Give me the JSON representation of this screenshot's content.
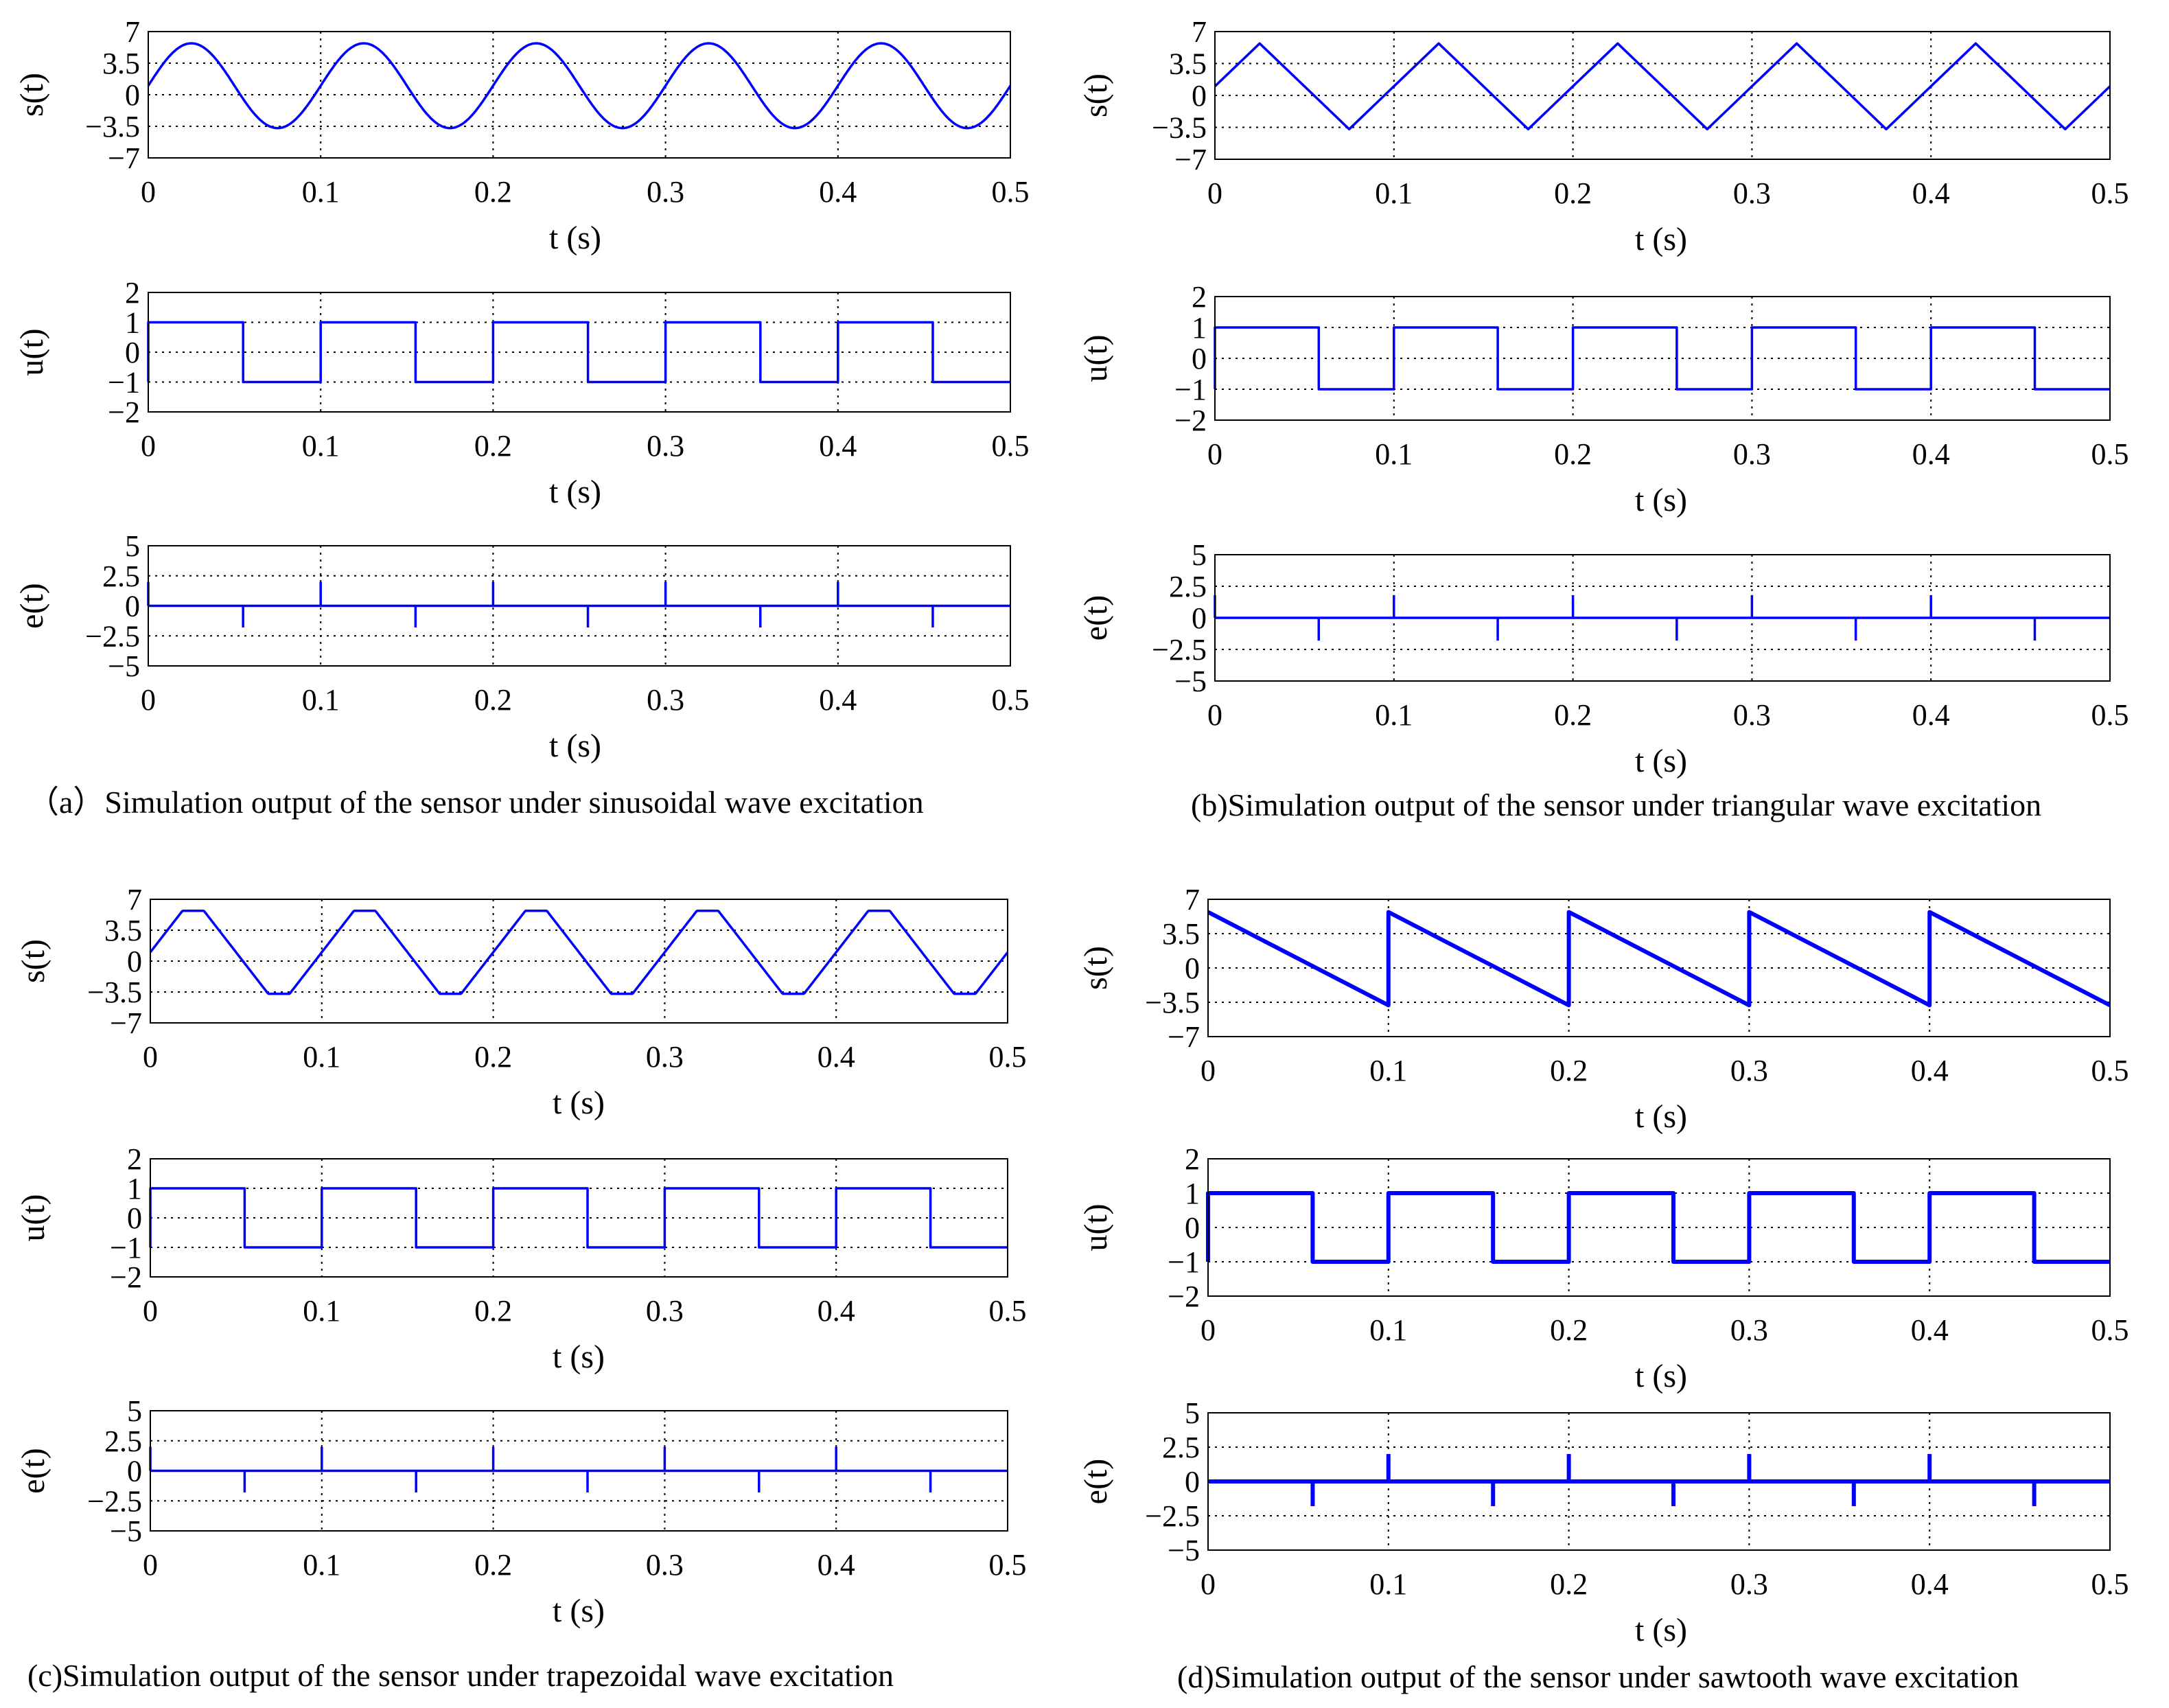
{
  "figure": {
    "captions": [
      "（a）Simulation output of the sensor under sinusoidal wave excitation",
      "(b)Simulation output of the sensor under triangular wave excitation",
      "(c)Simulation output of the sensor under trapezoidal wave excitation",
      "(d)Simulation output of the sensor under sawtooth wave excitation"
    ]
  },
  "colors": {
    "line": "#0000ff",
    "axis": "#000000",
    "background": "#ffffff"
  },
  "chart_data": [
    {
      "panel": "a",
      "type": "line",
      "excitation": "sinusoidal",
      "caption": "（a）Simulation output of the sensor under sinusoidal wave excitation",
      "subplots": [
        {
          "ylabel": "s(t)",
          "xlabel": "t (s)",
          "xlim": [
            0,
            0.5
          ],
          "ylim": [
            -7,
            7
          ],
          "xticks": [
            "0",
            "0.1",
            "0.2",
            "0.3",
            "0.4",
            "0.5"
          ],
          "yticks": [
            "7",
            "3.5",
            "0",
            "−3.5",
            "−7"
          ],
          "ytick_values": [
            7,
            3.5,
            0,
            -3.5,
            -7
          ],
          "grid": true,
          "series": [
            {
              "name": "s(t)",
              "shape": "sine",
              "period": 0.1,
              "offset": 1,
              "amplitude": 4.7
            }
          ]
        },
        {
          "ylabel": "u(t)",
          "xlabel": "t (s)",
          "xlim": [
            0,
            0.5
          ],
          "ylim": [
            -2,
            2
          ],
          "xticks": [
            "0",
            "0.1",
            "0.2",
            "0.3",
            "0.4",
            "0.5"
          ],
          "yticks": [
            "2",
            "1",
            "0",
            "−1",
            "−2"
          ],
          "ytick_values": [
            2,
            1,
            0,
            -1,
            -2
          ],
          "grid": true,
          "series": [
            {
              "name": "u(t)",
              "shape": "square",
              "period": 0.1,
              "high": 1,
              "low": -1,
              "high_until": 0.055
            }
          ]
        },
        {
          "ylabel": "e(t)",
          "xlabel": "t (s)",
          "xlim": [
            0,
            0.5
          ],
          "ylim": [
            -5,
            5
          ],
          "xticks": [
            "0",
            "0.1",
            "0.2",
            "0.3",
            "0.4",
            "0.5"
          ],
          "yticks": [
            "5",
            "2.5",
            "0",
            "−2.5",
            "−5"
          ],
          "ytick_values": [
            5,
            2.5,
            0,
            -2.5,
            -5
          ],
          "grid": true,
          "series": [
            {
              "name": "e(t)",
              "shape": "spikes",
              "spikes": [
                [
                  0,
                  2
                ],
                [
                  0.055,
                  -1.8
                ],
                [
                  0.1,
                  2
                ],
                [
                  0.155,
                  -1.8
                ],
                [
                  0.2,
                  2
                ],
                [
                  0.255,
                  -1.8
                ],
                [
                  0.3,
                  2
                ],
                [
                  0.355,
                  -1.8
                ],
                [
                  0.4,
                  2
                ],
                [
                  0.455,
                  -1.8
                ]
              ]
            }
          ]
        }
      ]
    },
    {
      "panel": "b",
      "type": "line",
      "excitation": "triangular",
      "caption": "(b)Simulation output of the sensor under triangular wave excitation",
      "subplots": [
        {
          "ylabel": "s(t)",
          "xlabel": "t (s)",
          "xlim": [
            0,
            0.5
          ],
          "ylim": [
            -7,
            7
          ],
          "xticks": [
            "0",
            "0.1",
            "0.2",
            "0.3",
            "0.4",
            "0.5"
          ],
          "yticks": [
            "7",
            "3.5",
            "0",
            "−3.5",
            "−7"
          ],
          "ytick_values": [
            7,
            3.5,
            0,
            -3.5,
            -7
          ],
          "grid": true,
          "series": [
            {
              "name": "s(t)",
              "shape": "triangle",
              "period": 0.1,
              "offset": 1,
              "amplitude": 4.7
            }
          ]
        },
        {
          "ylabel": "u(t)",
          "xlabel": "t (s)",
          "xlim": [
            0,
            0.5
          ],
          "ylim": [
            -2,
            2
          ],
          "xticks": [
            "0",
            "0.1",
            "0.2",
            "0.3",
            "0.4",
            "0.5"
          ],
          "yticks": [
            "2",
            "1",
            "0",
            "−1",
            "−2"
          ],
          "ytick_values": [
            2,
            1,
            0,
            -1,
            -2
          ],
          "grid": true,
          "series": [
            {
              "name": "u(t)",
              "shape": "square",
              "period": 0.1,
              "high": 1,
              "low": -1,
              "high_until": 0.058
            }
          ]
        },
        {
          "ylabel": "e(t)",
          "xlabel": "t (s)",
          "xlim": [
            0,
            0.5
          ],
          "ylim": [
            -5,
            5
          ],
          "xticks": [
            "0",
            "0.1",
            "0.2",
            "0.3",
            "0.4",
            "0.5"
          ],
          "yticks": [
            "5",
            "2.5",
            "0",
            "−2.5",
            "−5"
          ],
          "ytick_values": [
            5,
            2.5,
            0,
            -2.5,
            -5
          ],
          "grid": true,
          "series": [
            {
              "name": "e(t)",
              "shape": "spikes",
              "spikes": [
                [
                  0,
                  1.8
                ],
                [
                  0.058,
                  -1.8
                ],
                [
                  0.1,
                  1.8
                ],
                [
                  0.158,
                  -1.8
                ],
                [
                  0.2,
                  1.8
                ],
                [
                  0.258,
                  -1.8
                ],
                [
                  0.3,
                  1.8
                ],
                [
                  0.358,
                  -1.8
                ],
                [
                  0.4,
                  1.8
                ],
                [
                  0.458,
                  -1.8
                ]
              ]
            }
          ]
        }
      ]
    },
    {
      "panel": "c",
      "type": "line",
      "excitation": "trapezoidal",
      "caption": "(c)Simulation output of the sensor under trapezoidal wave excitation",
      "subplots": [
        {
          "ylabel": "s(t)",
          "xlabel": "t (s)",
          "xlim": [
            0,
            0.5
          ],
          "ylim": [
            -7,
            7
          ],
          "xticks": [
            "0",
            "0.1",
            "0.2",
            "0.3",
            "0.4",
            "0.5"
          ],
          "yticks": [
            "7",
            "3.5",
            "0",
            "−3.5",
            "−7"
          ],
          "ytick_values": [
            7,
            3.5,
            0,
            -3.5,
            -7
          ],
          "grid": true,
          "series": [
            {
              "name": "s(t)",
              "shape": "trapezoid",
              "period": 0.1,
              "offset": 1,
              "amplitude": 4.7,
              "clip": 0.75
            }
          ]
        },
        {
          "ylabel": "u(t)",
          "xlabel": "t (s)",
          "xlim": [
            0,
            0.5
          ],
          "ylim": [
            -2,
            2
          ],
          "xticks": [
            "0",
            "0.1",
            "0.2",
            "0.3",
            "0.4",
            "0.5"
          ],
          "yticks": [
            "2",
            "1",
            "0",
            "−1",
            "−2"
          ],
          "ytick_values": [
            2,
            1,
            0,
            -1,
            -2
          ],
          "grid": true,
          "series": [
            {
              "name": "u(t)",
              "shape": "square",
              "period": 0.1,
              "high": 1,
              "low": -1,
              "high_until": 0.055
            }
          ]
        },
        {
          "ylabel": "e(t)",
          "xlabel": "t (s)",
          "xlim": [
            0,
            0.5
          ],
          "ylim": [
            -5,
            5
          ],
          "xticks": [
            "0",
            "0.1",
            "0.2",
            "0.3",
            "0.4",
            "0.5"
          ],
          "yticks": [
            "5",
            "2.5",
            "0",
            "−2.5",
            "−5"
          ],
          "ytick_values": [
            5,
            2.5,
            0,
            -2.5,
            -5
          ],
          "grid": true,
          "series": [
            {
              "name": "e(t)",
              "shape": "spikes",
              "spikes": [
                [
                  0,
                  2
                ],
                [
                  0.055,
                  -1.8
                ],
                [
                  0.1,
                  2
                ],
                [
                  0.155,
                  -1.8
                ],
                [
                  0.2,
                  2
                ],
                [
                  0.255,
                  -1.8
                ],
                [
                  0.3,
                  2
                ],
                [
                  0.355,
                  -1.8
                ],
                [
                  0.4,
                  2
                ],
                [
                  0.455,
                  -1.8
                ]
              ]
            }
          ]
        }
      ]
    },
    {
      "panel": "d",
      "type": "line",
      "excitation": "sawtooth",
      "caption": "(d)Simulation output of the sensor under sawtooth wave excitation",
      "subplots": [
        {
          "ylabel": "s(t)",
          "xlabel": "t (s)",
          "xlim": [
            0,
            0.5
          ],
          "ylim": [
            -7,
            7
          ],
          "xticks": [
            "0",
            "0.1",
            "0.2",
            "0.3",
            "0.4",
            "0.5"
          ],
          "yticks": [
            "7",
            "3.5",
            "0",
            "−3.5",
            "−7"
          ],
          "ytick_values": [
            7,
            3.5,
            0,
            -3.5,
            -7
          ],
          "grid": true,
          "series": [
            {
              "name": "s(t)",
              "shape": "sawtooth",
              "period": 0.1,
              "start": 5.7,
              "end": -3.8
            }
          ]
        },
        {
          "ylabel": "u(t)",
          "xlabel": "t (s)",
          "xlim": [
            0,
            0.5
          ],
          "ylim": [
            -2,
            2
          ],
          "xticks": [
            "0",
            "0.1",
            "0.2",
            "0.3",
            "0.4",
            "0.5"
          ],
          "yticks": [
            "2",
            "1",
            "0",
            "−1",
            "−2"
          ],
          "ytick_values": [
            2,
            1,
            0,
            -1,
            -2
          ],
          "grid": true,
          "series": [
            {
              "name": "u(t)",
              "shape": "square",
              "period": 0.1,
              "high": 1,
              "low": -1,
              "high_until": 0.058
            }
          ]
        },
        {
          "ylabel": "e(t)",
          "xlabel": "t (s)",
          "xlim": [
            0,
            0.5
          ],
          "ylim": [
            -5,
            5
          ],
          "xticks": [
            "0",
            "0.1",
            "0.2",
            "0.3",
            "0.4",
            "0.5"
          ],
          "yticks": [
            "5",
            "2.5",
            "0",
            "−2.5",
            "−5"
          ],
          "ytick_values": [
            5,
            2.5,
            0,
            -2.5,
            -5
          ],
          "grid": true,
          "series": [
            {
              "name": "e(t)",
              "shape": "spikes",
              "spikes": [
                [
                  0.058,
                  -1.8
                ],
                [
                  0.1,
                  2
                ],
                [
                  0.158,
                  -1.8
                ],
                [
                  0.2,
                  2
                ],
                [
                  0.258,
                  -1.8
                ],
                [
                  0.3,
                  2
                ],
                [
                  0.358,
                  -1.8
                ],
                [
                  0.4,
                  2
                ],
                [
                  0.458,
                  -1.8
                ]
              ]
            }
          ]
        }
      ]
    }
  ]
}
